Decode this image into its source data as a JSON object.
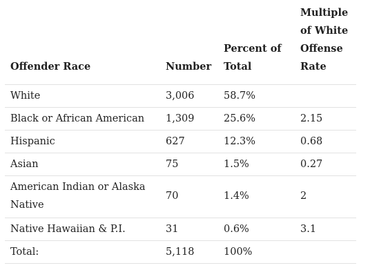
{
  "table": {
    "headers": {
      "race": "Offender Race",
      "number": "Number",
      "percent": "Percent of Total",
      "multiple": "Multiple of White Offense Rate"
    },
    "rows": [
      {
        "race": "White",
        "number": "3,006",
        "percent": "58.7%",
        "multiple": ""
      },
      {
        "race": "Black or African American",
        "number": "1,309",
        "percent": "25.6%",
        "multiple": "2.15"
      },
      {
        "race": "Hispanic",
        "number": "627",
        "percent": "12.3%",
        "multiple": "0.68"
      },
      {
        "race": "Asian",
        "number": "75",
        "percent": "1.5%",
        "multiple": "0.27"
      },
      {
        "race": "American Indian or Alaska Native",
        "number": "70",
        "percent": "1.4%",
        "multiple": "2"
      },
      {
        "race": "Native Hawaiian & P.I.",
        "number": "31",
        "percent": "0.6%",
        "multiple": "3.1"
      },
      {
        "race": "Total:",
        "number": "5,118",
        "percent": "100%",
        "multiple": ""
      }
    ]
  }
}
